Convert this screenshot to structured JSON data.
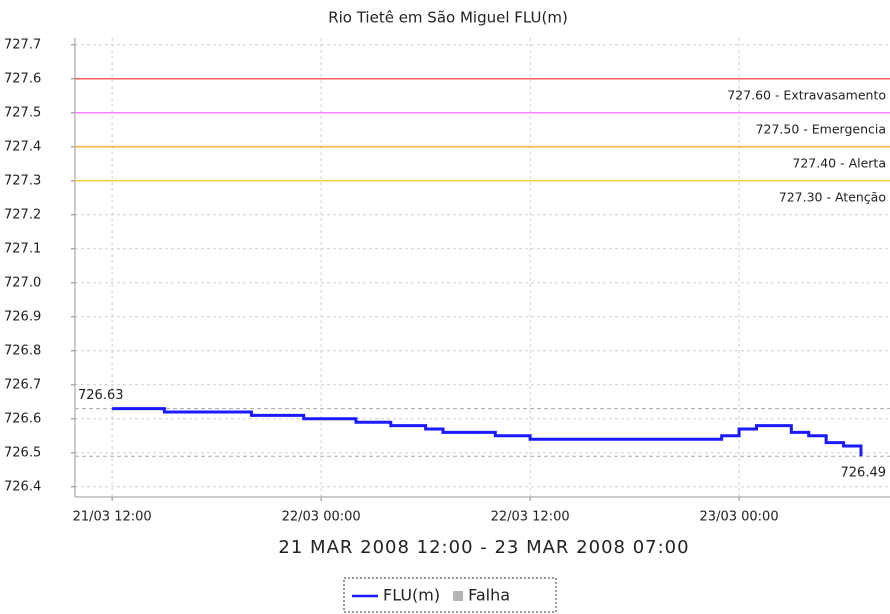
{
  "chart_data": {
    "type": "step-line",
    "title": "Rio Tietê em São Miguel FLU(m)",
    "x_label": "21 MAR 2008 12:00 - 23 MAR 2008 07:00",
    "x": [
      "21/03 12:00",
      "21/03 13:00",
      "21/03 14:00",
      "21/03 15:00",
      "21/03 16:00",
      "21/03 17:00",
      "21/03 18:00",
      "21/03 19:00",
      "21/03 20:00",
      "21/03 21:00",
      "21/03 22:00",
      "21/03 23:00",
      "22/03 00:00",
      "22/03 01:00",
      "22/03 02:00",
      "22/03 03:00",
      "22/03 04:00",
      "22/03 05:00",
      "22/03 06:00",
      "22/03 07:00",
      "22/03 08:00",
      "22/03 09:00",
      "22/03 10:00",
      "22/03 11:00",
      "22/03 12:00",
      "22/03 13:00",
      "22/03 14:00",
      "22/03 15:00",
      "22/03 16:00",
      "22/03 17:00",
      "22/03 18:00",
      "22/03 19:00",
      "22/03 20:00",
      "22/03 21:00",
      "22/03 22:00",
      "22/03 23:00",
      "23/03 00:00",
      "23/03 01:00",
      "23/03 02:00",
      "23/03 03:00",
      "23/03 04:00",
      "23/03 05:00",
      "23/03 06:00",
      "23/03 07:00"
    ],
    "series": [
      {
        "name": "FLU(m)",
        "color": "#1a1aff",
        "values": [
          726.63,
          726.63,
          726.63,
          726.62,
          726.62,
          726.62,
          726.62,
          726.62,
          726.61,
          726.61,
          726.61,
          726.6,
          726.6,
          726.6,
          726.59,
          726.59,
          726.58,
          726.58,
          726.57,
          726.56,
          726.56,
          726.56,
          726.55,
          726.55,
          726.54,
          726.54,
          726.54,
          726.54,
          726.54,
          726.54,
          726.54,
          726.54,
          726.54,
          726.54,
          726.54,
          726.55,
          726.57,
          726.58,
          726.58,
          726.56,
          726.55,
          726.53,
          726.52,
          726.49
        ]
      }
    ],
    "extra_legend": [
      {
        "name": "Falha",
        "color": "#b4b4b4"
      }
    ],
    "xlim": [
      "21/03 09:52",
      "23/03 08:40"
    ],
    "xticks": [
      "21/03 12:00",
      "22/03 00:00",
      "22/03 12:00",
      "23/03 00:00"
    ],
    "ylim": [
      726.37,
      727.72
    ],
    "yticks": [
      726.4,
      726.5,
      726.6,
      726.7,
      726.8,
      726.9,
      {
        "value": 727,
        "label": "727.0"
      },
      727.1,
      727.2,
      727.3,
      727.4,
      727.5,
      727.6,
      727.7
    ],
    "grid": true,
    "thresholds": [
      {
        "value": 727.6,
        "label": "727.60 - Extravasamento",
        "color": "#ff6060"
      },
      {
        "value": 727.5,
        "label": "727.50 - Emergencia",
        "color": "#ff80ff"
      },
      {
        "value": 727.4,
        "label": "727.40 - Alerta",
        "color": "#ffb040"
      },
      {
        "value": 727.3,
        "label": "727.30 - Atenção",
        "color": "#ffd040"
      }
    ],
    "markers": [
      {
        "value": 726.63,
        "label": "726.63",
        "side": "left"
      },
      {
        "value": 726.49,
        "label": "726.49",
        "side": "right"
      }
    ]
  }
}
